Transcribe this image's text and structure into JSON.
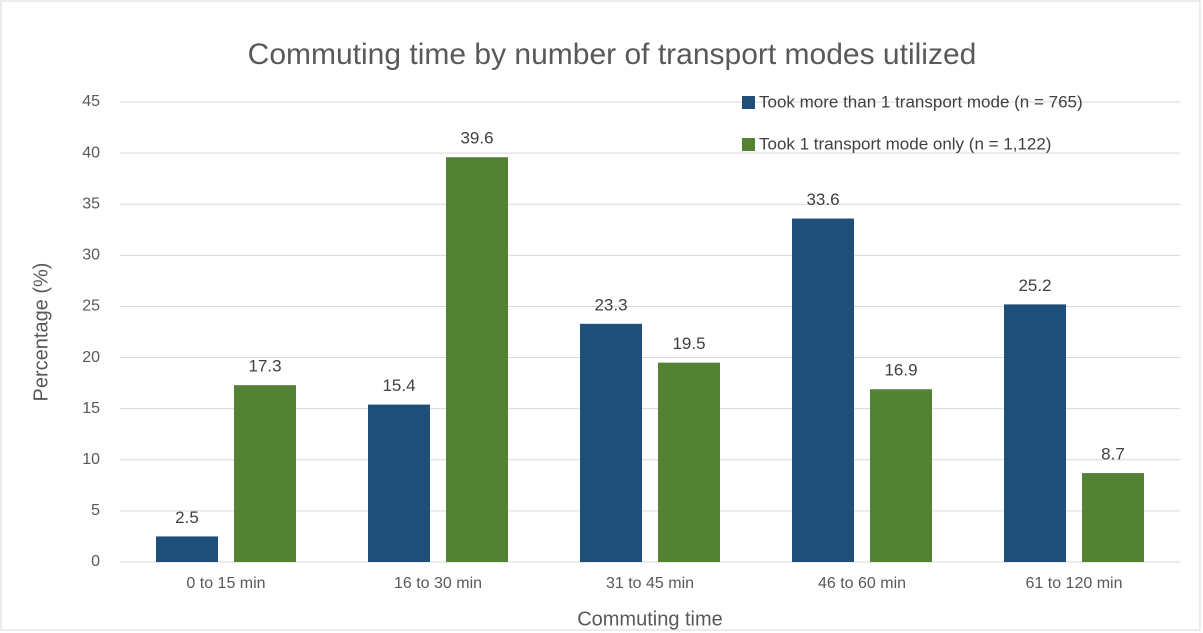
{
  "chart_data": {
    "type": "bar",
    "title": "Commuting time by number of transport modes utilized",
    "xlabel": "Commuting time",
    "ylabel": "Percentage (%)",
    "categories": [
      "0 to 15 min",
      "16 to 30 min",
      "31 to 45 min",
      "46 to 60 min",
      "61 to 120 min"
    ],
    "series": [
      {
        "name": "Took more than 1 transport mode (n = 765)",
        "color": "#1f4e79",
        "values": [
          2.5,
          15.4,
          23.3,
          33.6,
          25.2
        ]
      },
      {
        "name": "Took 1 transport mode only (n = 1,122)",
        "color": "#548235",
        "values": [
          17.3,
          39.6,
          19.5,
          16.9,
          8.7
        ]
      }
    ],
    "ylim": [
      0,
      45
    ],
    "yticks": [
      0,
      5,
      10,
      15,
      20,
      25,
      30,
      35,
      40,
      45
    ],
    "grid": true,
    "legend": "upper right"
  }
}
